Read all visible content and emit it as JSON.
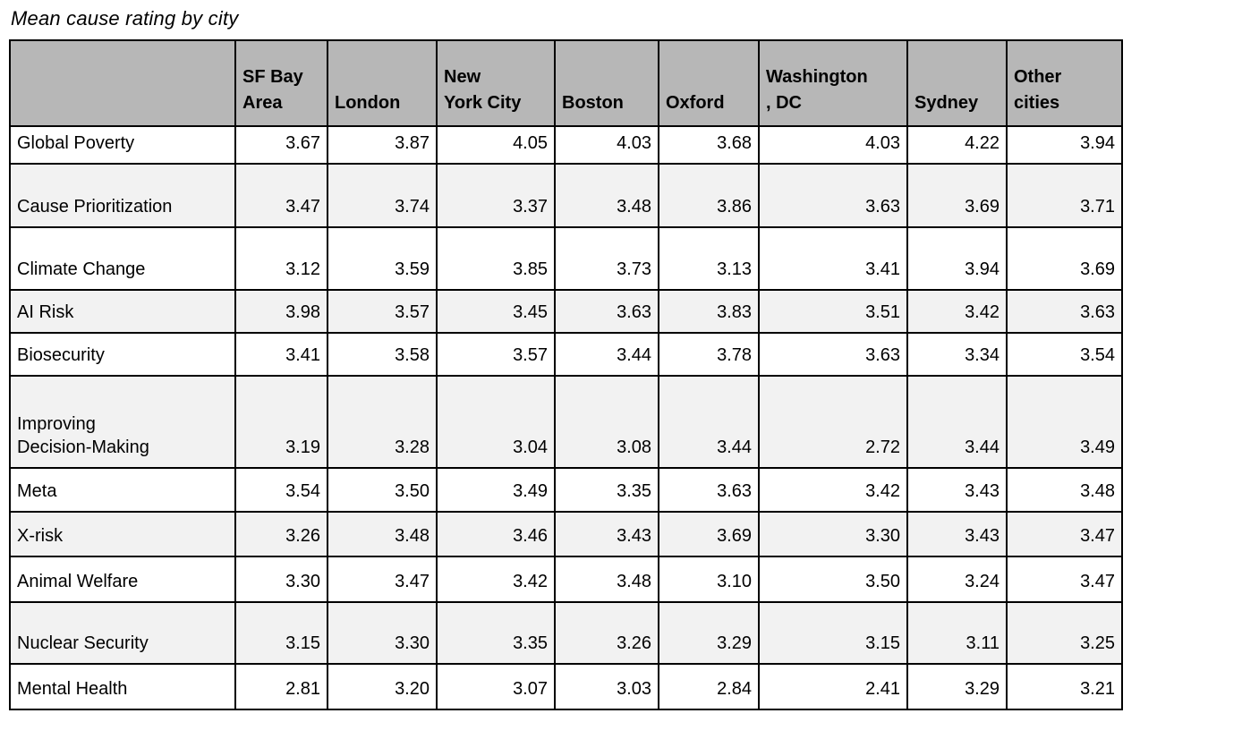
{
  "title": "Mean cause rating by city",
  "colors": {
    "header_background": "#b7b7b7",
    "alt_row_background": "#f2f2f2",
    "row_background": "#ffffff",
    "border": "#000000",
    "text": "#000000"
  },
  "table": {
    "corner_label": "",
    "columns": [
      {
        "label": "SF Bay Area",
        "display": "SF Bay\nArea"
      },
      {
        "label": "London",
        "display": "London"
      },
      {
        "label": "New York City",
        "display": "New\nYork City"
      },
      {
        "label": "Boston",
        "display": "Boston"
      },
      {
        "label": "Oxford",
        "display": "Oxford"
      },
      {
        "label": "Washington, DC",
        "display": "Washington\n, DC"
      },
      {
        "label": "Sydney",
        "display": "Sydney"
      },
      {
        "label": "Other cities",
        "display": "Other\ncities"
      }
    ],
    "rows": [
      {
        "label": "Global Poverty",
        "display": "Global Poverty",
        "values": [
          "3.67",
          "3.87",
          "4.05",
          "4.03",
          "3.68",
          "4.03",
          "4.22",
          "3.94"
        ]
      },
      {
        "label": "Cause Prioritization",
        "display": "Cause Prioritization",
        "values": [
          "3.47",
          "3.74",
          "3.37",
          "3.48",
          "3.86",
          "3.63",
          "3.69",
          "3.71"
        ]
      },
      {
        "label": "Climate Change",
        "display": "Climate Change",
        "values": [
          "3.12",
          "3.59",
          "3.85",
          "3.73",
          "3.13",
          "3.41",
          "3.94",
          "3.69"
        ]
      },
      {
        "label": "AI Risk",
        "display": "AI Risk",
        "values": [
          "3.98",
          "3.57",
          "3.45",
          "3.63",
          "3.83",
          "3.51",
          "3.42",
          "3.63"
        ]
      },
      {
        "label": "Biosecurity",
        "display": "Biosecurity",
        "values": [
          "3.41",
          "3.58",
          "3.57",
          "3.44",
          "3.78",
          "3.63",
          "3.34",
          "3.54"
        ]
      },
      {
        "label": "Improving Decision-Making",
        "display": "Improving\nDecision-Making",
        "values": [
          "3.19",
          "3.28",
          "3.04",
          "3.08",
          "3.44",
          "2.72",
          "3.44",
          "3.49"
        ]
      },
      {
        "label": "Meta",
        "display": "Meta",
        "values": [
          "3.54",
          "3.50",
          "3.49",
          "3.35",
          "3.63",
          "3.42",
          "3.43",
          "3.48"
        ]
      },
      {
        "label": "X-risk",
        "display": "X-risk",
        "values": [
          "3.26",
          "3.48",
          "3.46",
          "3.43",
          "3.69",
          "3.30",
          "3.43",
          "3.47"
        ]
      },
      {
        "label": "Animal Welfare",
        "display": "Animal Welfare",
        "values": [
          "3.30",
          "3.47",
          "3.42",
          "3.48",
          "3.10",
          "3.50",
          "3.24",
          "3.47"
        ]
      },
      {
        "label": "Nuclear Security",
        "display": "Nuclear Security",
        "values": [
          "3.15",
          "3.30",
          "3.35",
          "3.26",
          "3.29",
          "3.15",
          "3.11",
          "3.25"
        ]
      },
      {
        "label": "Mental Health",
        "display": "Mental Health",
        "values": [
          "2.81",
          "3.20",
          "3.07",
          "3.03",
          "2.84",
          "2.41",
          "3.29",
          "3.21"
        ]
      }
    ]
  },
  "chart_data": {
    "type": "table",
    "title": "Mean cause rating by city",
    "columns": [
      "SF Bay Area",
      "London",
      "New York City",
      "Boston",
      "Oxford",
      "Washington, DC",
      "Sydney",
      "Other cities"
    ],
    "rows": [
      {
        "name": "Global Poverty",
        "values": [
          3.67,
          3.87,
          4.05,
          4.03,
          3.68,
          4.03,
          4.22,
          3.94
        ]
      },
      {
        "name": "Cause Prioritization",
        "values": [
          3.47,
          3.74,
          3.37,
          3.48,
          3.86,
          3.63,
          3.69,
          3.71
        ]
      },
      {
        "name": "Climate Change",
        "values": [
          3.12,
          3.59,
          3.85,
          3.73,
          3.13,
          3.41,
          3.94,
          3.69
        ]
      },
      {
        "name": "AI Risk",
        "values": [
          3.98,
          3.57,
          3.45,
          3.63,
          3.83,
          3.51,
          3.42,
          3.63
        ]
      },
      {
        "name": "Biosecurity",
        "values": [
          3.41,
          3.58,
          3.57,
          3.44,
          3.78,
          3.63,
          3.34,
          3.54
        ]
      },
      {
        "name": "Improving Decision-Making",
        "values": [
          3.19,
          3.28,
          3.04,
          3.08,
          3.44,
          2.72,
          3.44,
          3.49
        ]
      },
      {
        "name": "Meta",
        "values": [
          3.54,
          3.5,
          3.49,
          3.35,
          3.63,
          3.42,
          3.43,
          3.48
        ]
      },
      {
        "name": "X-risk",
        "values": [
          3.26,
          3.48,
          3.46,
          3.43,
          3.69,
          3.3,
          3.43,
          3.47
        ]
      },
      {
        "name": "Animal Welfare",
        "values": [
          3.3,
          3.47,
          3.42,
          3.48,
          3.1,
          3.5,
          3.24,
          3.47
        ]
      },
      {
        "name": "Nuclear Security",
        "values": [
          3.15,
          3.3,
          3.35,
          3.26,
          3.29,
          3.15,
          3.11,
          3.25
        ]
      },
      {
        "name": "Mental Health",
        "values": [
          2.81,
          3.2,
          3.07,
          3.03,
          2.84,
          2.41,
          3.29,
          3.21
        ]
      }
    ],
    "value_format": "0.00",
    "grid": true,
    "legend_position": "none"
  }
}
